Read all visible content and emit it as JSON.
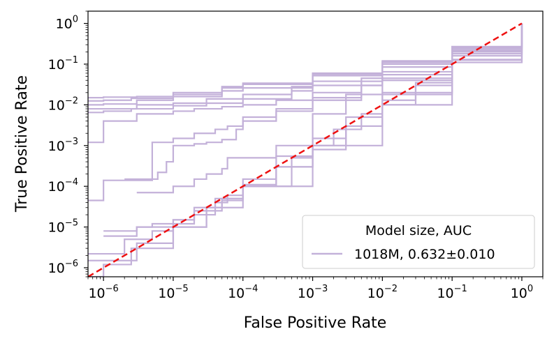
{
  "chart_data": {
    "type": "line",
    "title": "",
    "xlabel": "False Positive Rate",
    "ylabel": "True Positive Rate",
    "xscale": "log",
    "yscale": "log",
    "xlim": [
      6e-07,
      2
    ],
    "ylim": [
      6e-07,
      2
    ],
    "x_ticks": [
      {
        "base": "10",
        "exp": "−6",
        "value": 1e-06
      },
      {
        "base": "10",
        "exp": "−5",
        "value": 1e-05
      },
      {
        "base": "10",
        "exp": "−4",
        "value": 0.0001
      },
      {
        "base": "10",
        "exp": "−3",
        "value": 0.001
      },
      {
        "base": "10",
        "exp": "−2",
        "value": 0.01
      },
      {
        "base": "10",
        "exp": "−1",
        "value": 0.1
      },
      {
        "base": "10",
        "exp": "0",
        "value": 1
      }
    ],
    "y_ticks": [
      {
        "base": "10",
        "exp": "−6",
        "value": 1e-06
      },
      {
        "base": "10",
        "exp": "−5",
        "value": 1e-05
      },
      {
        "base": "10",
        "exp": "−4",
        "value": 0.0001
      },
      {
        "base": "10",
        "exp": "−3",
        "value": 0.001
      },
      {
        "base": "10",
        "exp": "−2",
        "value": 0.01
      },
      {
        "base": "10",
        "exp": "−1",
        "value": 0.1
      },
      {
        "base": "10",
        "exp": "0",
        "value": 1
      }
    ],
    "grid": false,
    "legend": {
      "title": "Model size, AUC",
      "placement": "lower-right",
      "entries": [
        "1018M, 0.632±0.010"
      ]
    },
    "series_color": "#c3b1d9",
    "baseline_color": "#ee1111",
    "baseline": {
      "x": [
        6e-07,
        1
      ],
      "y": [
        6e-07,
        1
      ],
      "style": "dashed"
    },
    "series": [
      {
        "x": [
          6e-07,
          1e-06,
          3e-06,
          1e-05,
          5e-05,
          0.0001,
          0.001,
          0.01,
          0.1,
          1
        ],
        "y": [
          0.015,
          0.0155,
          0.016,
          0.02,
          0.028,
          0.034,
          0.06,
          0.12,
          0.27,
          1
        ]
      },
      {
        "x": [
          6e-07,
          1e-06,
          2.5e-06,
          1e-05,
          5e-05,
          0.0001,
          0.001,
          0.01,
          0.1,
          1
        ],
        "y": [
          0.0125,
          0.013,
          0.0145,
          0.018,
          0.026,
          0.032,
          0.057,
          0.115,
          0.265,
          1
        ]
      },
      {
        "x": [
          6e-07,
          1e-06,
          3e-06,
          1e-05,
          5e-05,
          0.0001,
          0.001,
          0.01,
          0.1,
          1
        ],
        "y": [
          0.01,
          0.0105,
          0.013,
          0.016,
          0.022,
          0.026,
          0.052,
          0.11,
          0.26,
          1
        ]
      },
      {
        "x": [
          6e-07,
          1e-06,
          3e-06,
          1e-05,
          3e-05,
          0.0001,
          0.0005,
          0.001,
          0.01,
          0.1,
          1
        ],
        "y": [
          0.008,
          0.008,
          0.01,
          0.011,
          0.014,
          0.018,
          0.028,
          0.038,
          0.1,
          0.25,
          1
        ]
      },
      {
        "x": [
          6e-07,
          1e-06,
          2.5e-06,
          1e-05,
          3e-05,
          0.0001,
          0.0005,
          0.001,
          0.01,
          0.1,
          1
        ],
        "y": [
          0.0065,
          0.007,
          0.008,
          0.0095,
          0.011,
          0.014,
          0.022,
          0.03,
          0.085,
          0.24,
          1
        ]
      },
      {
        "x": [
          6e-07,
          1e-06,
          1e-06,
          3e-06,
          3e-06,
          1e-05,
          2e-05,
          5e-05,
          0.0001,
          0.0003,
          0.001,
          0.005,
          0.01,
          0.1,
          1
        ],
        "y": [
          0.0012,
          0.0012,
          0.004,
          0.004,
          0.006,
          0.007,
          0.008,
          0.009,
          0.01,
          0.013,
          0.02,
          0.045,
          0.065,
          0.22,
          1
        ]
      },
      {
        "x": [
          6e-07,
          1e-06,
          1e-06,
          4e-06,
          5e-06,
          1e-05,
          2e-05,
          4e-05,
          6e-05,
          0.0001,
          0.0003,
          0.001,
          0.005,
          0.01,
          0.1,
          1
        ],
        "y": [
          4.5e-05,
          4.5e-05,
          0.00014,
          0.00014,
          0.0012,
          0.0015,
          0.002,
          0.0025,
          0.003,
          0.005,
          0.008,
          0.015,
          0.038,
          0.055,
          0.21,
          1
        ]
      },
      {
        "x": [
          2e-06,
          4e-06,
          6e-06,
          8e-06,
          1e-05,
          2e-05,
          3e-05,
          5e-05,
          8e-05,
          0.0001,
          0.0003,
          0.001,
          0.005,
          0.01,
          0.1,
          1
        ],
        "y": [
          0.00015,
          0.00015,
          0.00022,
          0.0004,
          0.001,
          0.0011,
          0.0012,
          0.0014,
          0.0025,
          0.004,
          0.007,
          0.013,
          0.03,
          0.045,
          0.2,
          1
        ]
      },
      {
        "x": [
          3e-06,
          6e-06,
          1e-05,
          2e-05,
          3e-05,
          5e-05,
          6e-05,
          0.0001,
          0.0003,
          0.001,
          0.003,
          0.01,
          0.1,
          1
        ],
        "y": [
          7e-05,
          7e-05,
          0.0001,
          0.00015,
          0.0002,
          0.00027,
          0.0005,
          0.0005,
          0.00055,
          0.0008,
          0.003,
          0.02,
          0.18,
          1
        ]
      },
      {
        "x": [
          6e-07,
          1e-06,
          2e-06,
          5e-06,
          1e-05,
          2e-05,
          4e-05,
          6e-05,
          0.0001,
          0.0003,
          0.001,
          0.003,
          0.01,
          0.1,
          1
        ],
        "y": [
          2.2e-06,
          2.2e-06,
          5e-06,
          8e-06,
          1.2e-05,
          2e-05,
          4e-05,
          6e-05,
          0.00015,
          0.001,
          0.006,
          0.018,
          0.04,
          0.18,
          1
        ]
      },
      {
        "x": [
          1e-06,
          3e-06,
          5e-06,
          1e-05,
          2e-05,
          5e-05,
          0.0001,
          0.0005,
          0.001,
          0.003,
          0.01,
          0.1,
          1
        ],
        "y": [
          8e-06,
          1e-05,
          1.2e-05,
          1.5e-05,
          2.5e-05,
          4.5e-05,
          0.0001,
          0.0005,
          0.0015,
          0.005,
          0.018,
          0.16,
          1
        ]
      },
      {
        "x": [
          6e-07,
          1e-06,
          3e-06,
          1e-05,
          3e-05,
          5e-05,
          0.0001,
          0.0003,
          0.001,
          0.003,
          0.01,
          0.03,
          0.1,
          1
        ],
        "y": [
          1.5e-06,
          1.5e-06,
          4e-06,
          1e-05,
          3e-05,
          5e-05,
          0.0001,
          0.0003,
          0.001,
          0.003,
          0.01,
          0.03,
          0.13,
          1
        ]
      },
      {
        "x": [
          1e-06,
          2e-06,
          3e-06,
          1e-05,
          2e-05,
          4e-05,
          0.0001,
          0.0003,
          0.001,
          0.002,
          0.005,
          0.01,
          0.03,
          0.1,
          1
        ],
        "y": [
          6e-06,
          6e-06,
          1e-05,
          1.5e-05,
          3e-05,
          5e-05,
          0.00011,
          0.0003,
          0.001,
          0.0025,
          0.006,
          0.013,
          0.035,
          0.125,
          1
        ]
      },
      {
        "x": [
          6e-07,
          1e-06,
          2.5e-06,
          1e-05,
          3e-05,
          0.0001,
          0.001,
          0.01,
          0.1,
          1
        ],
        "y": [
          6e-07,
          1.2e-06,
          3e-06,
          1e-05,
          3e-05,
          0.0001,
          0.001,
          0.01,
          0.11,
          1
        ]
      }
    ]
  }
}
